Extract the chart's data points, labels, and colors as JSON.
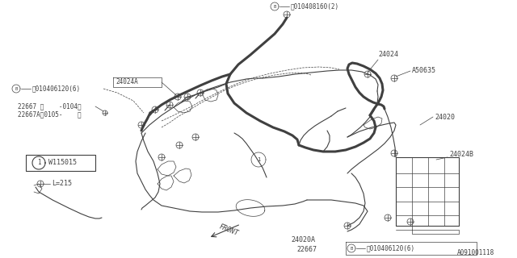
{
  "bg_color": "#ffffff",
  "lc": "#404040",
  "thin": 0.5,
  "med": 0.8,
  "thick": 2.2,
  "fig_w": 6.4,
  "fig_h": 3.2,
  "labels": {
    "B_top": "Ⓑ010408160(2)",
    "label_24024": "24024",
    "label_A50635": "A50635",
    "label_B_left": "Ⓑ010406120(6)",
    "label_24024A": "24024A",
    "label_22667": "22667 （    -0104）",
    "label_22667b": "22667A（0105-    ）",
    "label_24020": "24020",
    "label_24020A": "24020A",
    "label_24024B": "24024B",
    "label_W115015": "W115015",
    "label_L215": "L=215",
    "label_FRONT": "FRONT",
    "label_22667_bot": "22667",
    "label_B_bottom": "Ⓑ010406120(6)",
    "label_ref": "A091001118"
  }
}
